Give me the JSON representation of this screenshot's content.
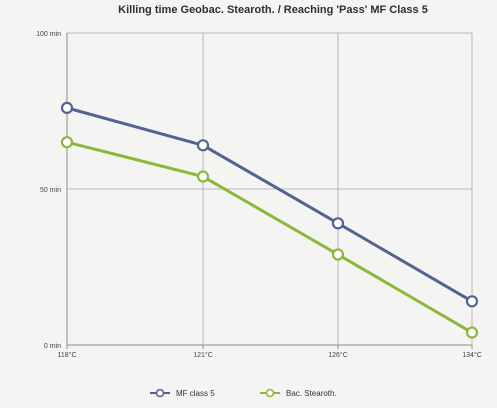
{
  "chart_data": {
    "type": "line",
    "title": "Killing time Geobac. Stearoth. / Reaching 'Pass' MF Class 5",
    "xlabel": "",
    "ylabel": "",
    "categories": [
      "118°C",
      "121°C",
      "126°C",
      "134°C"
    ],
    "y_tick_labels": [
      "0 min",
      "50 min",
      "100 min"
    ],
    "y_ticks": [
      0,
      50,
      100
    ],
    "ylim": [
      0,
      100
    ],
    "grid": true,
    "legend_position": "bottom",
    "series": [
      {
        "name": "MF class 5",
        "color": "#54628f",
        "values": [
          76,
          64,
          39,
          14
        ]
      },
      {
        "name": "Bac. Stearoth.",
        "color": "#8db63c",
        "values": [
          65,
          54,
          29,
          4
        ]
      }
    ]
  }
}
